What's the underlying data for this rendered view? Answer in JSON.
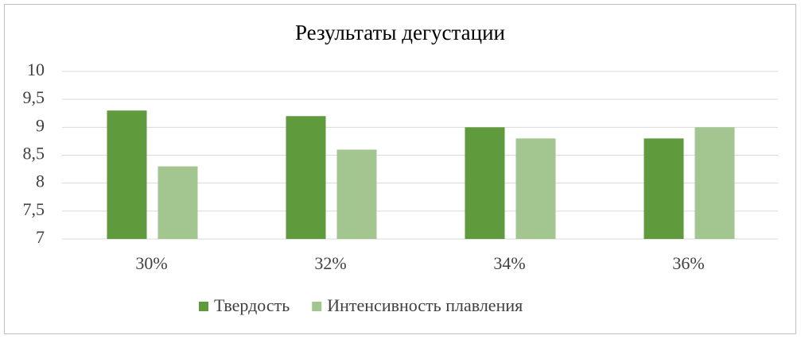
{
  "chart_data": {
    "type": "bar",
    "title": "Результаты дегустации",
    "categories": [
      "30%",
      "32%",
      "34%",
      "36%"
    ],
    "series": [
      {
        "name": "Твердость",
        "color": "#5f9a3c",
        "values": [
          9.3,
          9.2,
          9.0,
          8.8
        ]
      },
      {
        "name": "Интенсивность плавления",
        "color": "#a3c690",
        "values": [
          8.3,
          8.6,
          8.8,
          9.0
        ]
      }
    ],
    "ylim": [
      7,
      10
    ],
    "yticks": [
      7,
      {
        "value": 7.5,
        "label": "7,5"
      },
      8,
      {
        "value": 8.5,
        "label": "8,5"
      },
      9,
      {
        "value": 9.5,
        "label": "9,5"
      },
      10
    ],
    "grid": true,
    "legend": "bottom"
  }
}
